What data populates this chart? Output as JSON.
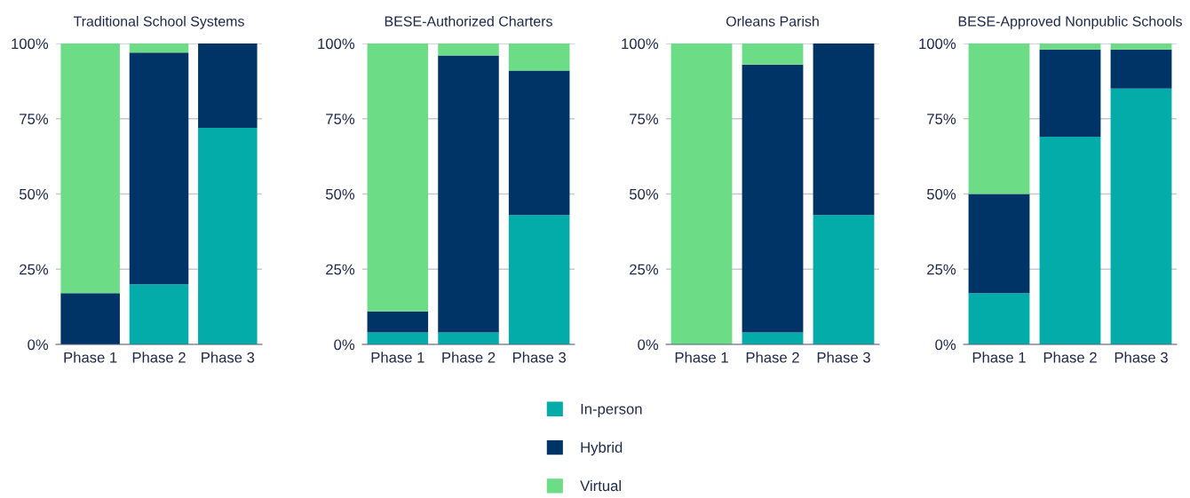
{
  "chart_data": [
    {
      "type": "bar",
      "title": "Traditional School Systems",
      "categories": [
        "Phase 1",
        "Phase 2",
        "Phase 3"
      ],
      "stacked": true,
      "ylim": [
        0,
        100
      ],
      "yticks": [
        {
          "value": 0,
          "label": "0%"
        },
        {
          "value": 25,
          "label": "25%"
        },
        {
          "value": 50,
          "label": "50%"
        },
        {
          "value": 75,
          "label": "75%"
        },
        {
          "value": 100,
          "label": "100%"
        }
      ],
      "grid": "y",
      "legend": "bottom",
      "series": [
        {
          "name": "In-person",
          "color": "#03aca9",
          "values": [
            0,
            20,
            72
          ]
        },
        {
          "name": "Hybrid",
          "color": "#003366",
          "values": [
            17,
            77,
            28
          ]
        },
        {
          "name": "Virtual",
          "color": "#6ddc86",
          "values": [
            83,
            3,
            0
          ]
        }
      ]
    },
    {
      "type": "bar",
      "title": "BESE-Authorized Charters",
      "categories": [
        "Phase 1",
        "Phase 2",
        "Phase 3"
      ],
      "stacked": true,
      "ylim": [
        0,
        100
      ],
      "yticks": [
        {
          "value": 0,
          "label": "0%"
        },
        {
          "value": 25,
          "label": "25%"
        },
        {
          "value": 50,
          "label": "50%"
        },
        {
          "value": 75,
          "label": "75%"
        },
        {
          "value": 100,
          "label": "100%"
        }
      ],
      "grid": "y",
      "series": [
        {
          "color": "#03aca9",
          "values": [
            4,
            4,
            43
          ]
        },
        {
          "color": "#003366",
          "values": [
            7,
            92,
            48
          ]
        },
        {
          "color": "#6ddc86",
          "values": [
            89,
            4,
            9
          ]
        }
      ]
    },
    {
      "type": "bar",
      "title": "Orleans Parish",
      "categories": [
        "Phase 1",
        "Phase 2",
        "Phase 3"
      ],
      "stacked": true,
      "ylim": [
        0,
        100
      ],
      "yticks": [
        {
          "value": 0,
          "label": "0%"
        },
        {
          "value": 25,
          "label": "25%"
        },
        {
          "value": 50,
          "label": "50%"
        },
        {
          "value": 75,
          "label": "75%"
        },
        {
          "value": 100,
          "label": "100%"
        }
      ],
      "grid": "y",
      "series": [
        {
          "color": "#03aca9",
          "values": [
            0,
            4,
            43
          ]
        },
        {
          "color": "#003366",
          "values": [
            0,
            89,
            57
          ]
        },
        {
          "color": "#6ddc86",
          "values": [
            100,
            7,
            0
          ]
        }
      ]
    },
    {
      "type": "bar",
      "title": "BESE-Approved Nonpublic Schools",
      "categories": [
        "Phase 1",
        "Phase 2",
        "Phase 3"
      ],
      "stacked": true,
      "ylim": [
        0,
        100
      ],
      "yticks": [
        {
          "value": 0,
          "label": "0%"
        },
        {
          "value": 25,
          "label": "25%"
        },
        {
          "value": 50,
          "label": "50%"
        },
        {
          "value": 75,
          "label": "75%"
        },
        {
          "value": 100,
          "label": "100%"
        }
      ],
      "grid": "y",
      "series": [
        {
          "color": "#03aca9",
          "values": [
            17,
            69,
            85
          ]
        },
        {
          "color": "#003366",
          "values": [
            33,
            29,
            13
          ]
        },
        {
          "color": "#6ddc86",
          "values": [
            50,
            2,
            2
          ]
        }
      ]
    }
  ]
}
